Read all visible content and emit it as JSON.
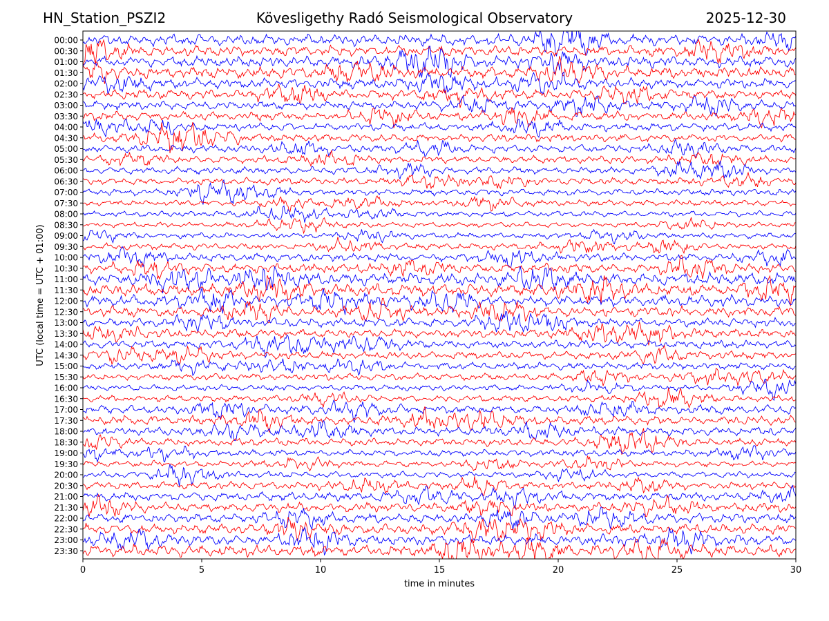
{
  "header": {
    "station": "HN_Station_PSZI2",
    "title": "Kövesligethy Radó Seismological Observatory",
    "date": "2025-12-30"
  },
  "chart_data": {
    "type": "line",
    "title": "Kövesligethy Radó Seismological Observatory",
    "xlabel": "time in minutes",
    "ylabel": "UTC (local time = UTC + 01:00)",
    "xlim": [
      0,
      30
    ],
    "xticks": [
      0,
      5,
      10,
      15,
      20,
      25,
      30
    ],
    "rows": [
      "00:00",
      "00:30",
      "01:00",
      "01:30",
      "02:00",
      "02:30",
      "03:00",
      "03:30",
      "04:00",
      "04:30",
      "05:00",
      "05:30",
      "06:00",
      "06:30",
      "07:00",
      "07:30",
      "08:00",
      "08:30",
      "09:00",
      "09:30",
      "10:00",
      "10:30",
      "11:00",
      "11:30",
      "12:00",
      "12:30",
      "13:00",
      "13:30",
      "14:00",
      "14:30",
      "15:00",
      "15:30",
      "16:00",
      "16:30",
      "17:00",
      "17:30",
      "18:00",
      "18:30",
      "19:00",
      "19:30",
      "20:00",
      "20:30",
      "21:00",
      "21:30",
      "22:00",
      "22:30",
      "23:00",
      "23:30"
    ],
    "row_colors": [
      "#0000ff",
      "#ff0000"
    ],
    "relative_amplitude": [
      1.3,
      1.2,
      1.25,
      1.3,
      1.15,
      1.1,
      1.0,
      1.0,
      0.9,
      0.95,
      0.9,
      0.85,
      0.8,
      0.8,
      0.75,
      0.7,
      0.65,
      0.6,
      0.65,
      0.75,
      0.95,
      1.1,
      1.4,
      1.4,
      1.3,
      1.2,
      1.0,
      1.0,
      0.95,
      0.9,
      0.85,
      0.8,
      0.7,
      0.75,
      1.0,
      1.05,
      1.0,
      0.9,
      0.75,
      0.7,
      0.7,
      0.85,
      1.0,
      1.05,
      1.1,
      1.15,
      1.25,
      1.35
    ],
    "grid": false,
    "legend": "none"
  }
}
